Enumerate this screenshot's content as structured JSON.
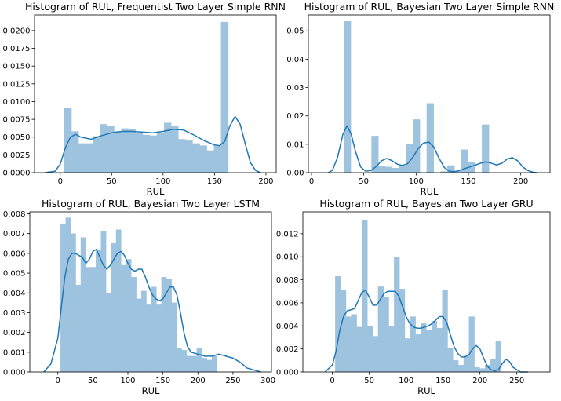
{
  "colors": {
    "bar": "#9ec3df",
    "kde": "#1f77b4",
    "axis": "#000000"
  },
  "chart_data": [
    {
      "type": "bar",
      "title": "Histogram of RUL, Frequentist Two Layer Simple RNN",
      "xlabel": "RUL",
      "ylabel": "",
      "xlim": [
        -25,
        210
      ],
      "ylim": [
        0,
        0.0222
      ],
      "xticks": [
        0,
        50,
        100,
        150,
        200
      ],
      "yticks": [
        0.0,
        0.0025,
        0.005,
        0.0075,
        0.01,
        0.0125,
        0.015,
        0.0175,
        0.02
      ],
      "ytick_labels": [
        "0.0000",
        "0.0025",
        "0.0050",
        "0.0075",
        "0.0100",
        "0.0125",
        "0.0150",
        "0.0175",
        "0.0200"
      ],
      "bins": {
        "start": 4,
        "width": 6.93
      },
      "values": [
        0.0091,
        0.0058,
        0.0041,
        0.0041,
        0.0051,
        0.0068,
        0.0066,
        0.0058,
        0.0062,
        0.0061,
        0.0055,
        0.0053,
        0.0052,
        0.0056,
        0.007,
        0.0065,
        0.0047,
        0.0045,
        0.0041,
        0.0038,
        0.0031,
        0.0038,
        0.0212
      ],
      "kde": [
        [
          -15,
          0.0
        ],
        [
          -5,
          0.0002
        ],
        [
          0,
          0.0012
        ],
        [
          5,
          0.0035
        ],
        [
          10,
          0.005
        ],
        [
          15,
          0.0054
        ],
        [
          20,
          0.005
        ],
        [
          30,
          0.0047
        ],
        [
          40,
          0.0052
        ],
        [
          50,
          0.0056
        ],
        [
          60,
          0.0058
        ],
        [
          70,
          0.0058
        ],
        [
          80,
          0.0057
        ],
        [
          90,
          0.0056
        ],
        [
          100,
          0.0058
        ],
        [
          110,
          0.0061
        ],
        [
          120,
          0.006
        ],
        [
          130,
          0.0053
        ],
        [
          140,
          0.0045
        ],
        [
          150,
          0.0039
        ],
        [
          155,
          0.0038
        ],
        [
          160,
          0.0044
        ],
        [
          165,
          0.0066
        ],
        [
          170,
          0.0079
        ],
        [
          175,
          0.0068
        ],
        [
          180,
          0.004
        ],
        [
          185,
          0.0014
        ],
        [
          190,
          0.0003
        ],
        [
          195,
          0.0
        ]
      ]
    },
    {
      "type": "bar",
      "title": "Histogram of RUL, Bayesian Two Layer Simple RNN",
      "xlabel": "RUL",
      "ylabel": "",
      "xlim": [
        -3,
        228
      ],
      "ylim": [
        0,
        0.0556
      ],
      "xticks": [
        0,
        50,
        100,
        150,
        200
      ],
      "yticks": [
        0.0,
        0.01,
        0.02,
        0.03,
        0.04,
        0.05
      ],
      "ytick_labels": [
        "0.00",
        "0.01",
        "0.02",
        "0.03",
        "0.04",
        "0.05"
      ],
      "bins": {
        "start": 31,
        "width": 6.6
      },
      "values": [
        0.0533,
        0.0,
        0.0,
        0.0,
        0.0129,
        0.0022,
        0.002,
        0.0016,
        0.0022,
        0.0099,
        0.0187,
        0.0,
        0.0244,
        0.0,
        0.0004,
        0.0025,
        0.0005,
        0.0081,
        0.0036,
        0.0,
        0.0169
      ],
      "kde": [
        [
          16,
          0.0
        ],
        [
          20,
          0.0008
        ],
        [
          25,
          0.0055
        ],
        [
          30,
          0.0135
        ],
        [
          34,
          0.0165
        ],
        [
          38,
          0.0135
        ],
        [
          42,
          0.0075
        ],
        [
          47,
          0.002
        ],
        [
          52,
          0.0005
        ],
        [
          57,
          0.0008
        ],
        [
          62,
          0.0022
        ],
        [
          67,
          0.0042
        ],
        [
          72,
          0.005
        ],
        [
          77,
          0.0042
        ],
        [
          82,
          0.003
        ],
        [
          87,
          0.0025
        ],
        [
          92,
          0.0032
        ],
        [
          97,
          0.0055
        ],
        [
          102,
          0.0085
        ],
        [
          107,
          0.0104
        ],
        [
          112,
          0.0108
        ],
        [
          117,
          0.009
        ],
        [
          122,
          0.005
        ],
        [
          127,
          0.0018
        ],
        [
          132,
          0.0004
        ],
        [
          137,
          0.0004
        ],
        [
          142,
          0.0008
        ],
        [
          147,
          0.0015
        ],
        [
          152,
          0.0021
        ],
        [
          157,
          0.0027
        ],
        [
          162,
          0.0034
        ],
        [
          167,
          0.0038
        ],
        [
          172,
          0.0033
        ],
        [
          177,
          0.0027
        ],
        [
          182,
          0.0033
        ],
        [
          187,
          0.0048
        ],
        [
          192,
          0.0053
        ],
        [
          197,
          0.0042
        ],
        [
          202,
          0.002
        ],
        [
          207,
          0.0007
        ],
        [
          212,
          0.0001
        ],
        [
          216,
          0.0
        ]
      ]
    },
    {
      "type": "bar",
      "title": "Histogram of RUL, Bayesian Two Layer LSTM",
      "xlabel": "RUL",
      "ylabel": "",
      "xlim": [
        -40,
        305
      ],
      "ylim": [
        0,
        0.0081
      ],
      "xticks": [
        0,
        50,
        100,
        150,
        200,
        250,
        300
      ],
      "yticks": [
        0.0,
        0.001,
        0.002,
        0.003,
        0.004,
        0.005,
        0.006,
        0.007,
        0.008
      ],
      "ytick_labels": [
        "0.000",
        "0.001",
        "0.002",
        "0.003",
        "0.004",
        "0.005",
        "0.006",
        "0.007",
        "0.008"
      ],
      "bins": {
        "start": 4,
        "width": 7.2
      },
      "values": [
        0.0075,
        0.0078,
        0.007,
        0.0044,
        0.0068,
        0.0053,
        0.0053,
        0.0062,
        0.0071,
        0.004,
        0.0065,
        0.0072,
        0.0054,
        0.0057,
        0.0048,
        0.0037,
        0.0041,
        0.0034,
        0.0043,
        0.0034,
        0.0048,
        0.0047,
        0.0035,
        0.0012,
        0.0011,
        0.0008,
        0.0008,
        0.0012,
        0.0007,
        0.0006,
        0.0008
      ],
      "kde": [
        [
          -20,
          0.0
        ],
        [
          -10,
          0.0004
        ],
        [
          0,
          0.0017
        ],
        [
          5,
          0.0033
        ],
        [
          10,
          0.0048
        ],
        [
          15,
          0.0057
        ],
        [
          20,
          0.006
        ],
        [
          25,
          0.006
        ],
        [
          30,
          0.0059
        ],
        [
          35,
          0.0058
        ],
        [
          40,
          0.0055
        ],
        [
          45,
          0.0057
        ],
        [
          50,
          0.0061
        ],
        [
          55,
          0.0062
        ],
        [
          60,
          0.0058
        ],
        [
          65,
          0.0054
        ],
        [
          70,
          0.0052
        ],
        [
          75,
          0.0054
        ],
        [
          80,
          0.0057
        ],
        [
          85,
          0.006
        ],
        [
          90,
          0.0061
        ],
        [
          95,
          0.0059
        ],
        [
          100,
          0.0055
        ],
        [
          105,
          0.0052
        ],
        [
          110,
          0.0051
        ],
        [
          115,
          0.0052
        ],
        [
          120,
          0.0052
        ],
        [
          125,
          0.0048
        ],
        [
          130,
          0.0043
        ],
        [
          135,
          0.0039
        ],
        [
          140,
          0.0037
        ],
        [
          145,
          0.0036
        ],
        [
          150,
          0.0037
        ],
        [
          155,
          0.004
        ],
        [
          160,
          0.0043
        ],
        [
          165,
          0.0043
        ],
        [
          170,
          0.0039
        ],
        [
          175,
          0.003
        ],
        [
          180,
          0.002
        ],
        [
          185,
          0.0013
        ],
        [
          190,
          0.001
        ],
        [
          200,
          0.0009
        ],
        [
          210,
          0.0008
        ],
        [
          220,
          0.0008
        ],
        [
          230,
          0.0009
        ],
        [
          240,
          0.0008
        ],
        [
          250,
          0.0007
        ],
        [
          260,
          0.0005
        ],
        [
          270,
          0.0002
        ],
        [
          280,
          0.0001
        ],
        [
          290,
          0.0
        ]
      ]
    },
    {
      "type": "bar",
      "title": "Histogram of RUL, Bayesian Two Layer GRU",
      "xlabel": "RUL",
      "ylabel": "",
      "xlim": [
        -40,
        295
      ],
      "ylim": [
        0,
        0.0139
      ],
      "xticks": [
        0,
        50,
        100,
        150,
        200,
        250
      ],
      "yticks": [
        0.0,
        0.002,
        0.004,
        0.006,
        0.008,
        0.01,
        0.012
      ],
      "ytick_labels": [
        "0.000",
        "0.002",
        "0.004",
        "0.006",
        "0.008",
        "0.010",
        "0.012"
      ],
      "bins": {
        "start": 4,
        "width": 7.25
      },
      "values": [
        0.0083,
        0.0071,
        0.0048,
        0.005,
        0.0039,
        0.0132,
        0.004,
        0.0031,
        0.0074,
        0.0065,
        0.004,
        0.01,
        0.0072,
        0.0029,
        0.0048,
        0.0033,
        0.0042,
        0.0036,
        0.0044,
        0.0038,
        0.0071,
        0.0021,
        0.001,
        0.0006,
        0.0014,
        0.0048,
        0.0004,
        0.0003,
        0.0006,
        0.0011,
        0.0027
      ],
      "kde": [
        [
          -10,
          0.0
        ],
        [
          0,
          0.0006
        ],
        [
          5,
          0.0018
        ],
        [
          10,
          0.0036
        ],
        [
          15,
          0.0048
        ],
        [
          20,
          0.0053
        ],
        [
          25,
          0.0054
        ],
        [
          30,
          0.0055
        ],
        [
          35,
          0.0062
        ],
        [
          40,
          0.0069
        ],
        [
          45,
          0.0071
        ],
        [
          50,
          0.0065
        ],
        [
          55,
          0.0058
        ],
        [
          60,
          0.0058
        ],
        [
          65,
          0.0063
        ],
        [
          70,
          0.0068
        ],
        [
          75,
          0.007
        ],
        [
          80,
          0.007
        ],
        [
          85,
          0.007
        ],
        [
          90,
          0.0066
        ],
        [
          95,
          0.0057
        ],
        [
          100,
          0.0048
        ],
        [
          105,
          0.0042
        ],
        [
          110,
          0.0039
        ],
        [
          115,
          0.0038
        ],
        [
          120,
          0.0038
        ],
        [
          125,
          0.0039
        ],
        [
          130,
          0.004
        ],
        [
          135,
          0.0042
        ],
        [
          140,
          0.0045
        ],
        [
          145,
          0.0048
        ],
        [
          150,
          0.0048
        ],
        [
          155,
          0.0043
        ],
        [
          160,
          0.0032
        ],
        [
          165,
          0.0022
        ],
        [
          170,
          0.0016
        ],
        [
          175,
          0.0013
        ],
        [
          180,
          0.0013
        ],
        [
          185,
          0.0015
        ],
        [
          190,
          0.002
        ],
        [
          195,
          0.0023
        ],
        [
          200,
          0.002
        ],
        [
          205,
          0.0012
        ],
        [
          210,
          0.0005
        ],
        [
          215,
          0.0002
        ],
        [
          220,
          0.0001
        ],
        [
          225,
          0.0002
        ],
        [
          230,
          0.0007
        ],
        [
          235,
          0.0011
        ],
        [
          240,
          0.0009
        ],
        [
          245,
          0.0004
        ],
        [
          255,
          0.0
        ],
        [
          265,
          0.0
        ]
      ]
    }
  ]
}
